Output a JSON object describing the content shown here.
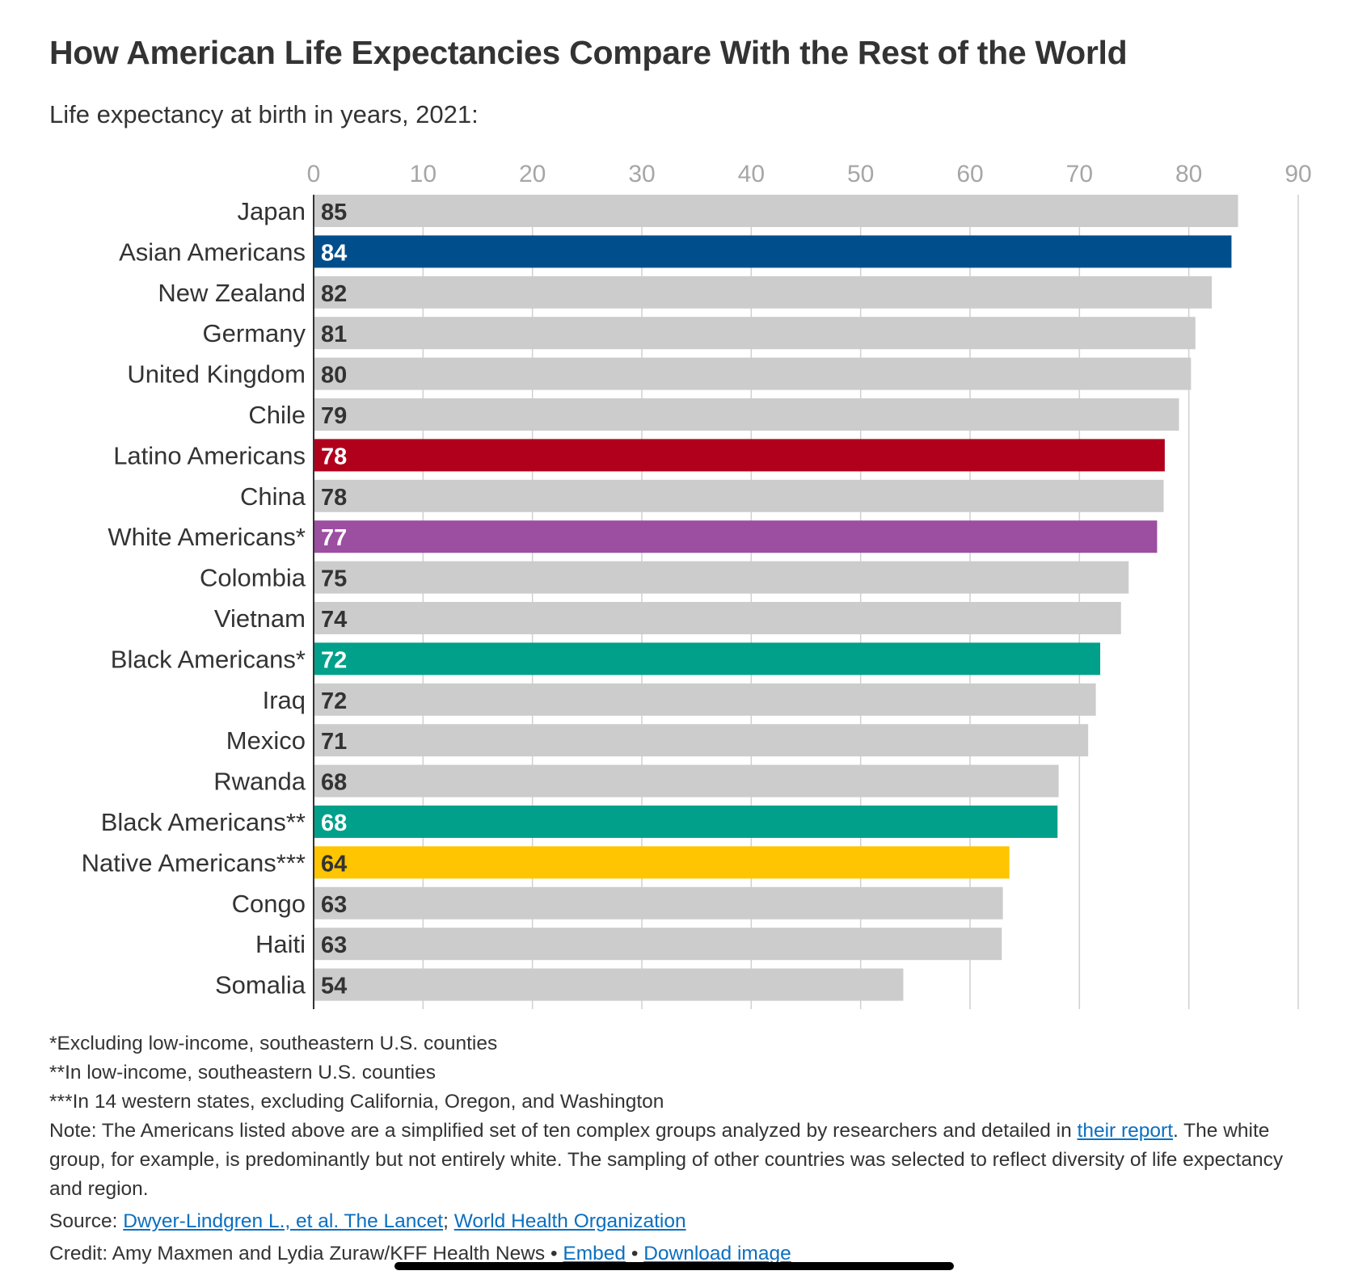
{
  "title": "How American Life Expectancies Compare With the Rest of the World",
  "subtitle": "Life expectancy at birth in years, 2021:",
  "chart_data": {
    "type": "bar",
    "orientation": "horizontal",
    "xlim": [
      0,
      90
    ],
    "x_ticks": [
      0,
      10,
      20,
      30,
      40,
      50,
      60,
      70,
      80,
      90
    ],
    "grid": true,
    "categories": [
      "Japan",
      "Asian Americans",
      "New Zealand",
      "Germany",
      "United Kingdom",
      "Chile",
      "Latino Americans",
      "China",
      "White Americans*",
      "Colombia",
      "Vietnam",
      "Black Americans*",
      "Iraq",
      "Mexico",
      "Rwanda",
      "Black Americans**",
      "Native Americans***",
      "Congo",
      "Haiti",
      "Somalia"
    ],
    "values": [
      84.5,
      83.9,
      82.1,
      80.6,
      80.2,
      79.1,
      77.8,
      77.7,
      77.1,
      74.5,
      73.8,
      71.9,
      71.5,
      70.8,
      68.1,
      68.0,
      63.6,
      63.0,
      62.9,
      53.9
    ],
    "value_labels": [
      "85",
      "84",
      "82",
      "81",
      "80",
      "79",
      "78",
      "78",
      "77",
      "75",
      "74",
      "72",
      "72",
      "71",
      "68",
      "68",
      "64",
      "63",
      "63",
      "54"
    ],
    "colors": [
      "#cccccc",
      "#004e8c",
      "#cccccc",
      "#cccccc",
      "#cccccc",
      "#cccccc",
      "#b1001c",
      "#cccccc",
      "#9c4ea1",
      "#cccccc",
      "#cccccc",
      "#00a08a",
      "#cccccc",
      "#cccccc",
      "#cccccc",
      "#00a08a",
      "#ffc500",
      "#cccccc",
      "#cccccc",
      "#cccccc"
    ],
    "label_colors": [
      "#333333",
      "#ffffff",
      "#333333",
      "#333333",
      "#333333",
      "#333333",
      "#ffffff",
      "#333333",
      "#ffffff",
      "#333333",
      "#333333",
      "#ffffff",
      "#333333",
      "#333333",
      "#333333",
      "#ffffff",
      "#333333",
      "#333333",
      "#333333",
      "#333333"
    ]
  },
  "footnotes": {
    "f1": "*Excluding low-income, southeastern U.S. counties",
    "f2": "**In low-income, southeastern U.S. counties",
    "f3": "***In 14 western states, excluding California, Oregon, and Washington",
    "note_prefix": "Note: The Americans listed above are a simplified set of ten complex groups analyzed by researchers and detailed in ",
    "note_link": "their report",
    "note_suffix": ". The white group, for example, is predominantly but not entirely white. The sampling of other countries was selected to reflect diversity of life expectancy and region.",
    "source_label": "Source: ",
    "source_link1": "Dwyer-Lindgren L., et al. The Lancet",
    "source_sep": "; ",
    "source_link2": "World Health Organization",
    "credit_text": "Credit: Amy Maxmen and Lydia Zuraw/KFF Health News • ",
    "credit_link1": "Embed",
    "credit_sep": " • ",
    "credit_link2": "Download image"
  },
  "colors": {
    "text": "#333333",
    "link": "#0b6fc0",
    "gridline": "#d0d0d0",
    "tick_label": "#a6a6a6"
  }
}
